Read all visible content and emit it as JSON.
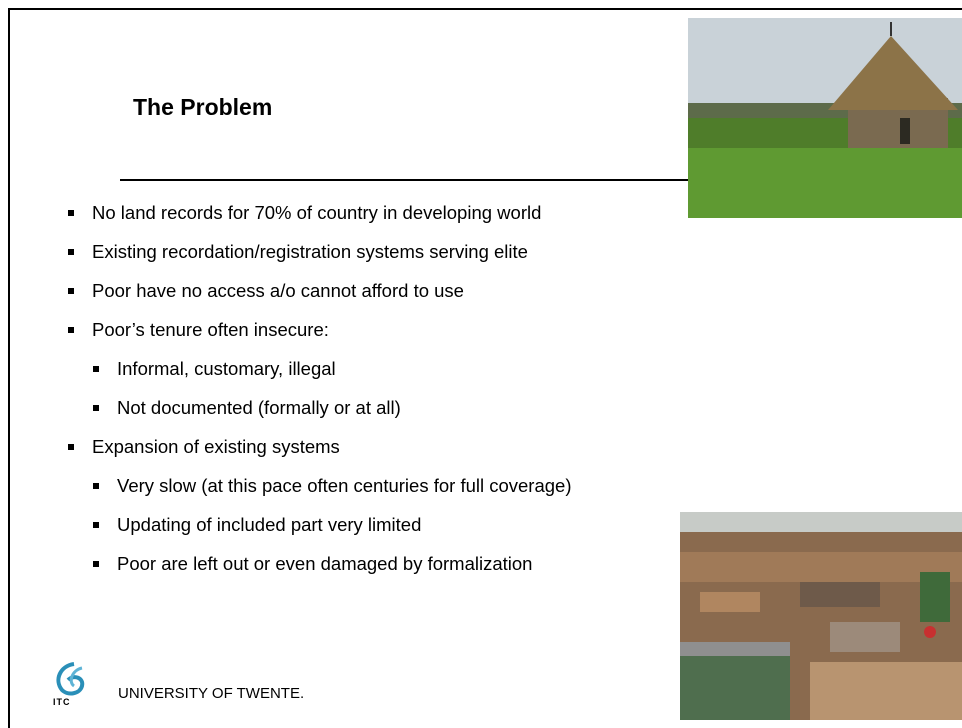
{
  "slide": {
    "title": "The Problem",
    "bullets": [
      {
        "text": "No land records for 70% of country in developing world"
      },
      {
        "text": "Existing recordation/registration systems serving elite"
      },
      {
        "text": "Poor have no access a/o cannot afford to use"
      },
      {
        "text": "Poor’s tenure often insecure:",
        "sub": [
          "Informal, customary, illegal",
          "Not documented (formally or at all)"
        ]
      },
      {
        "text": "Expansion of existing systems",
        "sub": [
          "Very slow (at this pace often centuries for full coverage)",
          "Updating of included part very limited",
          "Poor are left out or even damaged by formalization"
        ]
      }
    ],
    "logo": "ITC",
    "footer": "UNIVERSITY OF TWENTE."
  }
}
